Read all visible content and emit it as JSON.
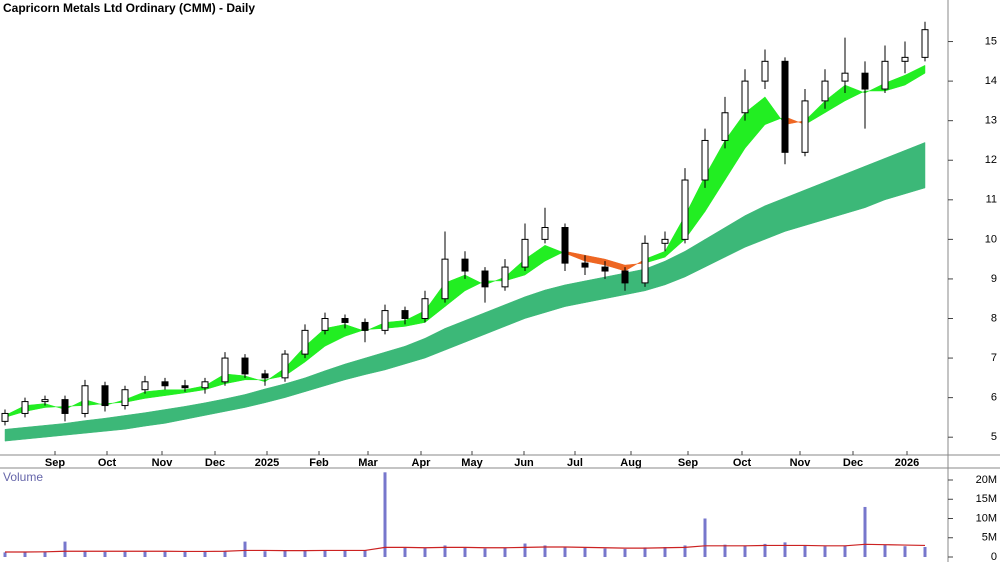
{
  "chart_data": [
    {
      "type": "candlestick",
      "title": "Capricorn Metals Ltd Ordinary (CMM) - Daily",
      "xlim": [
        -0.25,
        47.15
      ],
      "xticks": [
        {
          "value": 2.5,
          "label": "Sep"
        },
        {
          "value": 5.1,
          "label": "Oct"
        },
        {
          "value": 7.85,
          "label": "Nov"
        },
        {
          "value": 10.5,
          "label": "Dec"
        },
        {
          "value": 13.1,
          "label": "2025"
        },
        {
          "value": 15.7,
          "label": "Feb"
        },
        {
          "value": 18.15,
          "label": "Mar"
        },
        {
          "value": 20.8,
          "label": "Apr"
        },
        {
          "value": 23.35,
          "label": "May"
        },
        {
          "value": 25.95,
          "label": "Jun"
        },
        {
          "value": 28.5,
          "label": "Jul"
        },
        {
          "value": 31.3,
          "label": "Aug"
        },
        {
          "value": 34.15,
          "label": "Sep"
        },
        {
          "value": 36.85,
          "label": "Oct"
        },
        {
          "value": 39.75,
          "label": "Nov"
        },
        {
          "value": 42.4,
          "label": "Dec"
        },
        {
          "value": 45.1,
          "label": "2026"
        }
      ],
      "ylim": [
        4.55,
        16.05
      ],
      "yticks": [
        5,
        6,
        7,
        8,
        9,
        10,
        11,
        12,
        13,
        14,
        15
      ],
      "open": [
        5.4,
        5.6,
        5.9,
        5.95,
        5.6,
        6.3,
        5.8,
        6.2,
        6.4,
        6.3,
        6.25,
        6.4,
        7.0,
        6.6,
        6.5,
        7.1,
        7.7,
        8.0,
        7.9,
        7.7,
        8.2,
        8.0,
        8.5,
        9.5,
        9.2,
        8.8,
        9.3,
        10.0,
        10.3,
        9.4,
        9.3,
        9.2,
        8.9,
        9.9,
        10.0,
        11.5,
        12.5,
        13.2,
        14.0,
        14.5,
        12.2,
        13.5,
        14.0,
        14.2,
        13.8,
        14.5,
        14.6
      ],
      "high": [
        5.7,
        6.0,
        6.05,
        6.05,
        6.45,
        6.4,
        6.3,
        6.55,
        6.5,
        6.45,
        6.5,
        7.15,
        7.1,
        6.7,
        7.2,
        7.85,
        8.15,
        8.1,
        8.0,
        8.35,
        8.3,
        8.7,
        10.2,
        9.7,
        9.3,
        9.5,
        10.4,
        10.8,
        10.4,
        9.6,
        9.45,
        9.3,
        10.1,
        10.2,
        11.8,
        12.8,
        13.6,
        14.3,
        14.8,
        14.6,
        13.8,
        14.3,
        15.1,
        14.5,
        14.9,
        15.0,
        15.5
      ],
      "low": [
        5.3,
        5.5,
        5.8,
        5.4,
        5.5,
        5.65,
        5.7,
        6.1,
        6.2,
        6.15,
        6.1,
        6.3,
        6.5,
        6.3,
        6.4,
        7.0,
        7.6,
        7.75,
        7.4,
        7.6,
        7.85,
        7.9,
        8.4,
        9.0,
        8.4,
        8.7,
        9.2,
        9.9,
        9.2,
        9.1,
        9.0,
        8.7,
        8.8,
        9.7,
        9.9,
        11.3,
        12.3,
        13.0,
        13.8,
        11.9,
        12.1,
        13.3,
        13.7,
        12.8,
        13.7,
        14.2,
        14.5
      ],
      "close": [
        5.6,
        5.9,
        5.95,
        5.6,
        6.3,
        5.8,
        6.2,
        6.4,
        6.3,
        6.25,
        6.4,
        7.0,
        6.6,
        6.5,
        7.1,
        7.7,
        8.0,
        7.9,
        7.7,
        8.2,
        8.0,
        8.5,
        9.5,
        9.2,
        8.8,
        9.3,
        10.0,
        10.3,
        9.4,
        9.3,
        9.2,
        8.9,
        9.9,
        10.0,
        11.5,
        12.5,
        13.2,
        14.0,
        14.5,
        12.2,
        13.5,
        14.0,
        14.2,
        13.8,
        14.5,
        14.6,
        15.3
      ],
      "up_color": "#ffffff",
      "down_color": "#000000",
      "fast_band": {
        "short": [
          5.55,
          5.8,
          5.85,
          5.7,
          5.95,
          5.8,
          5.95,
          6.15,
          6.2,
          6.2,
          6.3,
          6.6,
          6.55,
          6.4,
          6.75,
          7.3,
          7.75,
          7.85,
          7.68,
          7.9,
          7.95,
          8.2,
          8.9,
          9.1,
          8.85,
          9.05,
          9.5,
          9.85,
          9.65,
          9.45,
          9.35,
          9.2,
          9.5,
          9.7,
          10.6,
          11.6,
          12.5,
          13.2,
          13.6,
          12.9,
          13.0,
          13.5,
          13.9,
          13.7,
          13.95,
          14.15,
          14.4
        ],
        "long": [
          5.5,
          5.65,
          5.75,
          5.78,
          5.8,
          5.85,
          5.88,
          5.98,
          6.05,
          6.12,
          6.2,
          6.35,
          6.45,
          6.45,
          6.55,
          6.9,
          7.3,
          7.55,
          7.72,
          7.75,
          7.8,
          7.9,
          8.3,
          8.7,
          8.95,
          8.95,
          9.1,
          9.45,
          9.7,
          9.6,
          9.5,
          9.35,
          9.4,
          9.55,
          10.0,
          10.7,
          11.5,
          12.3,
          12.9,
          13.1,
          12.9,
          13.2,
          13.5,
          13.75,
          13.75,
          13.9,
          14.2
        ],
        "up_color": "#22ee22",
        "down_color": "#ee6622"
      },
      "slow_band": {
        "upper": [
          5.2,
          5.25,
          5.3,
          5.35,
          5.42,
          5.48,
          5.55,
          5.62,
          5.7,
          5.78,
          5.87,
          5.97,
          6.08,
          6.22,
          6.35,
          6.5,
          6.68,
          6.85,
          7.0,
          7.15,
          7.3,
          7.5,
          7.75,
          7.95,
          8.15,
          8.35,
          8.55,
          8.72,
          8.85,
          8.95,
          9.05,
          9.15,
          9.25,
          9.45,
          9.7,
          10.0,
          10.3,
          10.6,
          10.85,
          11.05,
          11.25,
          11.45,
          11.65,
          11.85,
          12.05,
          12.25,
          12.45
        ],
        "lower": [
          4.9,
          4.95,
          5.0,
          5.05,
          5.1,
          5.15,
          5.2,
          5.28,
          5.35,
          5.45,
          5.55,
          5.65,
          5.75,
          5.87,
          6.0,
          6.15,
          6.3,
          6.45,
          6.58,
          6.7,
          6.85,
          7.0,
          7.2,
          7.4,
          7.6,
          7.8,
          8.0,
          8.15,
          8.3,
          8.4,
          8.5,
          8.6,
          8.7,
          8.85,
          9.05,
          9.3,
          9.55,
          9.8,
          10.0,
          10.2,
          10.35,
          10.5,
          10.65,
          10.8,
          11.0,
          11.15,
          11.3
        ],
        "color": "#3cb878"
      }
    },
    {
      "type": "bar",
      "title": "Volume",
      "ylim": [
        0,
        22.6
      ],
      "yticks": [
        0,
        {
          "value": 5,
          "label": "5M"
        },
        {
          "value": 10,
          "label": "10M"
        },
        {
          "value": 15,
          "label": "15M"
        },
        {
          "value": 20,
          "label": "20M"
        }
      ],
      "values": [
        1.2,
        1.3,
        1.4,
        4.0,
        1.5,
        1.3,
        1.4,
        1.5,
        1.4,
        1.3,
        1.5,
        1.6,
        4.0,
        1.5,
        1.6,
        1.8,
        1.7,
        1.6,
        1.8,
        22.0,
        2.5,
        2.3,
        3.0,
        2.5,
        2.2,
        2.4,
        3.5,
        3.0,
        2.6,
        2.4,
        2.2,
        2.1,
        2.5,
        2.6,
        3.0,
        10.0,
        3.2,
        3.0,
        3.4,
        3.8,
        3.0,
        2.8,
        3.0,
        13.0,
        3.2,
        2.8,
        2.6
      ],
      "color": "#7777cc",
      "average": [
        1.3,
        1.3,
        1.35,
        1.5,
        1.5,
        1.5,
        1.5,
        1.5,
        1.5,
        1.45,
        1.45,
        1.5,
        1.7,
        1.7,
        1.65,
        1.65,
        1.7,
        1.7,
        1.7,
        2.5,
        2.5,
        2.4,
        2.5,
        2.5,
        2.4,
        2.4,
        2.5,
        2.6,
        2.6,
        2.5,
        2.4,
        2.3,
        2.3,
        2.4,
        2.5,
        2.9,
        2.9,
        2.9,
        3.0,
        3.0,
        3.0,
        2.9,
        2.9,
        3.3,
        3.2,
        3.1,
        3.0
      ],
      "average_color": "#cc2222"
    }
  ]
}
